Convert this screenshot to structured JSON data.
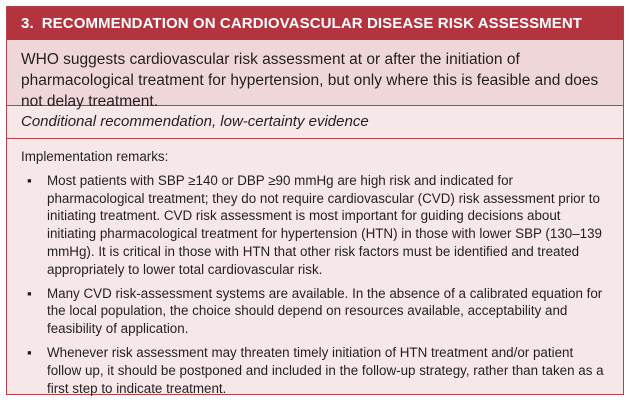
{
  "header": {
    "number": "3.",
    "title": "RECOMMENDATION ON CARDIOVASCULAR DISEASE RISK ASSESSMENT"
  },
  "statement": "WHO suggests cardiovascular risk assessment at or after the initiation of pharmacological treatment for hypertension, but only where this is feasible and does not delay treatment.",
  "strength": "Conditional recommendation, low-certainty evidence",
  "remarks": {
    "title": "Implementation remarks:",
    "bullet_glyph": "▪",
    "items": [
      "Most patients with SBP ≥140 or DBP ≥90 mmHg are high risk and indicated for pharmacological treatment; they do not require cardiovascular (CVD) risk assessment prior to initiating treatment. CVD risk assessment is most important for guiding decisions about initiating pharmacological treatment for hypertension (HTN) in those with lower SBP (130–139 mmHg). It is critical in those with HTN that other risk factors must be identified and treated appropriately to lower total cardiovascular risk.",
      "Many CVD risk-assessment systems are available. In the absence of a calibrated equation for the local population, the choice should depend on resources available, acceptability and feasibility of application.",
      "Whenever risk assessment may threaten timely initiation of HTN treatment and/or patient follow up, it should be postponed and included in the follow-up strategy, rather than taken as a first step to indicate treatment."
    ]
  },
  "colors": {
    "header_bg": "#b3343f",
    "statement_bg": "#efd7d9",
    "body_bg": "#f6e8e9",
    "border": "#b6404b"
  }
}
